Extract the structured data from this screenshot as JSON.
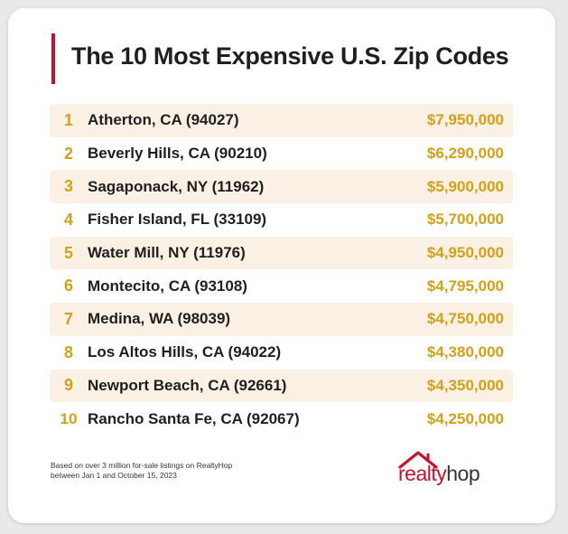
{
  "title": "The 10 Most Expensive U.S. Zip Codes",
  "rows": [
    {
      "rank": "1",
      "name": "Atherton, CA (94027)",
      "price": "$7,950,000"
    },
    {
      "rank": "2",
      "name": "Beverly Hills, CA (90210)",
      "price": "$6,290,000"
    },
    {
      "rank": "3",
      "name": "Sagaponack, NY (11962)",
      "price": "$5,900,000"
    },
    {
      "rank": "4",
      "name": "Fisher Island, FL (33109)",
      "price": "$5,700,000"
    },
    {
      "rank": "5",
      "name": "Water Mill, NY (11976)",
      "price": "$4,950,000"
    },
    {
      "rank": "6",
      "name": "Montecito, CA (93108)",
      "price": "$4,795,000"
    },
    {
      "rank": "7",
      "name": "Medina, WA (98039)",
      "price": "$4,750,000"
    },
    {
      "rank": "8",
      "name": "Los Altos Hills, CA (94022)",
      "price": "$4,380,000"
    },
    {
      "rank": "9",
      "name": "Newport Beach, CA (92661)",
      "price": "$4,350,000"
    },
    {
      "rank": "10",
      "name": "Rancho Santa Fe, CA (92067)",
      "price": "$4,250,000"
    }
  ],
  "footnote": {
    "line1": "Based on over 3 million for-sale listings on RealtyHop",
    "line2": "between Jan 1 and October 15, 2023"
  },
  "logo": {
    "part1": "realty",
    "part2": "hop",
    "icon": "house-roof-icon"
  },
  "colors": {
    "accent": "#c8102e",
    "gold": "#d4a017",
    "row_shade": "#faf1e4"
  }
}
